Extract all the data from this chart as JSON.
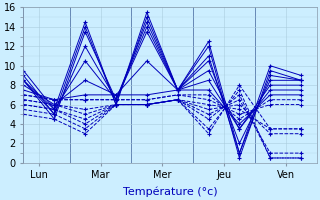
{
  "title": "Température (°c)",
  "days": [
    "Lun",
    "Mar",
    "Mer",
    "Jeu",
    "Ven"
  ],
  "day_tick_positions": [
    0.5,
    2.5,
    4.5,
    6.5,
    8.5
  ],
  "day_separator_positions": [
    0,
    1.5,
    3.5,
    5.5,
    7.5,
    9.5
  ],
  "bg_color": "#cceeff",
  "grid_color": "#aaccdd",
  "line_color": "#0000bb",
  "ylim": [
    0,
    16
  ],
  "yticks": [
    0,
    2,
    4,
    6,
    8,
    10,
    12,
    14,
    16
  ],
  "xlim": [
    0,
    9.5
  ],
  "series": [
    [
      9.5,
      5.5,
      14.5,
      6.0,
      15.5,
      7.5,
      12.5,
      1.0,
      10.0,
      9.0
    ],
    [
      9.0,
      5.0,
      14.0,
      6.0,
      15.0,
      7.5,
      12.0,
      0.5,
      9.5,
      8.5
    ],
    [
      8.5,
      4.5,
      13.5,
      6.5,
      14.5,
      7.5,
      11.0,
      1.0,
      9.0,
      8.5
    ],
    [
      8.5,
      5.0,
      12.0,
      6.5,
      14.0,
      7.5,
      10.5,
      2.0,
      8.5,
      8.5
    ],
    [
      8.5,
      5.5,
      10.5,
      6.5,
      13.5,
      7.5,
      9.5,
      3.5,
      8.0,
      8.0
    ],
    [
      8.0,
      6.0,
      8.5,
      7.0,
      10.5,
      7.5,
      8.5,
      3.5,
      7.5,
      7.5
    ],
    [
      7.5,
      6.5,
      7.0,
      7.0,
      7.0,
      7.5,
      7.5,
      4.0,
      7.0,
      7.0
    ],
    [
      7.0,
      6.5,
      6.5,
      6.5,
      6.5,
      7.0,
      7.0,
      4.5,
      6.5,
      6.5
    ],
    [
      7.0,
      6.5,
      6.5,
      6.5,
      6.5,
      7.0,
      6.5,
      5.0,
      6.0,
      6.0
    ],
    [
      6.5,
      6.0,
      5.5,
      6.0,
      6.0,
      6.5,
      6.0,
      5.5,
      3.5,
      3.5
    ],
    [
      6.5,
      6.0,
      5.0,
      6.0,
      6.0,
      6.5,
      5.5,
      6.0,
      3.0,
      3.0
    ],
    [
      6.0,
      5.5,
      4.5,
      6.0,
      6.0,
      6.5,
      5.0,
      6.5,
      1.0,
      1.0
    ],
    [
      6.0,
      5.5,
      4.0,
      6.0,
      6.0,
      6.5,
      4.5,
      7.0,
      0.5,
      0.5
    ],
    [
      5.5,
      5.0,
      3.5,
      6.0,
      6.0,
      6.5,
      3.5,
      7.5,
      0.5,
      0.5
    ],
    [
      5.0,
      4.5,
      3.0,
      6.0,
      6.0,
      6.5,
      3.0,
      8.0,
      3.5,
      3.5
    ]
  ],
  "solid_count": 7,
  "x_points": [
    0,
    1,
    2,
    3,
    4,
    5,
    6,
    7,
    8,
    9
  ]
}
